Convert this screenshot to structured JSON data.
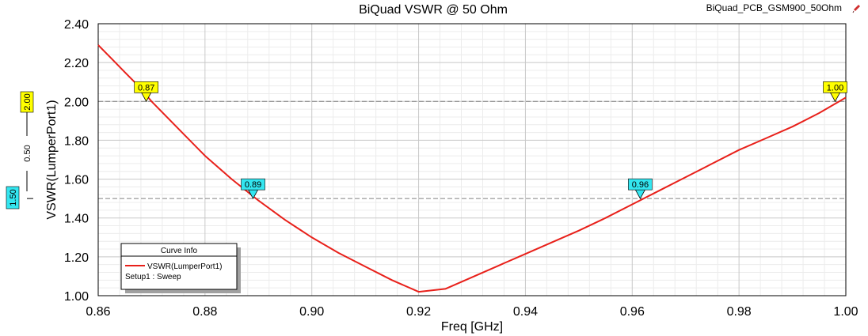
{
  "title": "BiQuad VSWR @ 50 Ohm",
  "design_name": "BiQuad_PCB_GSM900_50Ohm",
  "colors": {
    "curve": "#e8201a",
    "marker_yellow": "#ffff00",
    "marker_cyan": "#33e6f0",
    "grid_major": "#c8c8c8",
    "grid_minor": "#ececec",
    "ref_line": "#808080"
  },
  "legend": {
    "header": "Curve Info",
    "entry": "VSWR(LumperPort1)",
    "sub": "Setup1 : Sweep"
  },
  "delta_bar": {
    "top_label": "2.00",
    "delta_label": "0.50",
    "bottom_label": "1.50"
  },
  "chart_data": {
    "type": "line",
    "title": "BiQuad VSWR @ 50 Ohm",
    "xlabel": "Freq [GHz]",
    "ylabel": "VSWR(LumperPort1)",
    "xlim": [
      0.86,
      1.0
    ],
    "ylim": [
      1.0,
      2.4
    ],
    "grid": true,
    "legend_position": "bottom-left",
    "x_ticks": [
      "0.86",
      "0.88",
      "0.90",
      "0.92",
      "0.94",
      "0.96",
      "0.98",
      "1.00"
    ],
    "y_ticks": [
      "1.00",
      "1.20",
      "1.40",
      "1.60",
      "1.80",
      "2.00",
      "2.20",
      "2.40"
    ],
    "series": [
      {
        "name": "VSWR(LumperPort1)",
        "x": [
          0.86,
          0.8625,
          0.865,
          0.8675,
          0.87,
          0.875,
          0.88,
          0.885,
          0.89,
          0.895,
          0.9,
          0.905,
          0.91,
          0.915,
          0.92,
          0.925,
          0.93,
          0.935,
          0.94,
          0.945,
          0.95,
          0.955,
          0.96,
          0.965,
          0.97,
          0.975,
          0.98,
          0.985,
          0.99,
          0.995,
          1.0
        ],
        "y": [
          2.29,
          2.22,
          2.15,
          2.08,
          2.0,
          1.86,
          1.72,
          1.6,
          1.49,
          1.39,
          1.3,
          1.22,
          1.15,
          1.08,
          1.02,
          1.035,
          1.095,
          1.155,
          1.215,
          1.275,
          1.335,
          1.4,
          1.47,
          1.54,
          1.61,
          1.68,
          1.75,
          1.81,
          1.87,
          1.94,
          2.02
        ]
      }
    ],
    "reference_lines": [
      2.0,
      1.5
    ],
    "markers": [
      {
        "label": "0.87",
        "x": 0.869,
        "y": 2.0,
        "color": "yellow"
      },
      {
        "label": "0.89",
        "x": 0.889,
        "y": 1.5,
        "color": "cyan"
      },
      {
        "label": "0.96",
        "x": 0.9615,
        "y": 1.5,
        "color": "cyan"
      },
      {
        "label": "1.00",
        "x": 0.998,
        "y": 2.0,
        "color": "yellow"
      }
    ]
  }
}
